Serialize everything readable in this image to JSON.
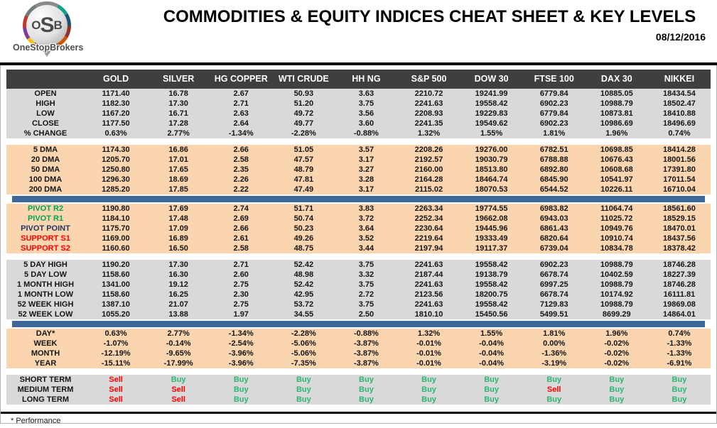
{
  "logo": {
    "letter_o": "O",
    "letter_s": "S",
    "letter_b": "B",
    "subtext": "OneStopBrokers"
  },
  "header": {
    "title": "COMMODITIES & EQUITY INDICES CHEAT SHEET & KEY LEVELS",
    "date": "08/12/2016"
  },
  "footer": {
    "note": "* Performance"
  },
  "colors": {
    "header_bg": "#3F3F3F",
    "gray_row": "#D9D9D9",
    "peach_row": "#FAD5AF",
    "blue_bar": "#3E689A",
    "pivot_green": "#00A551",
    "support_red": "#FF0000",
    "pivot_navy": "#1F3864",
    "buy_green": "#2BB673",
    "sell_red": "#FF0000"
  },
  "chart_data": {
    "type": "table",
    "title": "COMMODITIES & EQUITY INDICES CHEAT SHEET & KEY LEVELS",
    "date": "08/12/2016",
    "columns": [
      "GOLD",
      "SILVER",
      "HG COPPER",
      "WTI CRUDE",
      "HH NG",
      "S&P 500",
      "DOW 30",
      "FTSE 100",
      "DAX 30",
      "NIKKEI"
    ]
  },
  "table": {
    "columns": [
      "GOLD",
      "SILVER",
      "HG COPPER",
      "WTI CRUDE",
      "HH NG",
      "S&P 500",
      "DOW 30",
      "FTSE 100",
      "DAX 30",
      "NIKKEI"
    ],
    "sections": [
      {
        "bg": "gray",
        "rows": [
          {
            "label": "OPEN",
            "values": [
              "1171.40",
              "16.78",
              "2.67",
              "50.93",
              "3.63",
              "2210.72",
              "19241.99",
              "6779.84",
              "10885.05",
              "18434.54"
            ]
          },
          {
            "label": "HIGH",
            "values": [
              "1182.30",
              "17.30",
              "2.71",
              "51.20",
              "3.75",
              "2241.63",
              "19558.42",
              "6902.23",
              "10988.79",
              "18502.47"
            ]
          },
          {
            "label": "LOW",
            "values": [
              "1167.20",
              "16.71",
              "2.63",
              "49.72",
              "3.56",
              "2208.93",
              "19229.83",
              "6779.84",
              "10873.81",
              "18410.88"
            ]
          },
          {
            "label": "CLOSE",
            "values": [
              "1177.50",
              "17.28",
              "2.64",
              "49.77",
              "3.60",
              "2241.35",
              "19549.62",
              "6902.23",
              "10986.69",
              "18496.69"
            ]
          },
          {
            "label": "% CHANGE",
            "values": [
              "0.63%",
              "2.77%",
              "-1.34%",
              "-2.28%",
              "-0.88%",
              "1.32%",
              "1.55%",
              "1.81%",
              "1.96%",
              "0.74%"
            ]
          }
        ]
      },
      {
        "divider": "gap"
      },
      {
        "bg": "peach",
        "rows": [
          {
            "label": "5 DMA",
            "values": [
              "1174.30",
              "16.86",
              "2.66",
              "51.05",
              "3.57",
              "2208.26",
              "19276.00",
              "6782.51",
              "10698.85",
              "18414.28"
            ]
          },
          {
            "label": "20 DMA",
            "values": [
              "1205.70",
              "17.01",
              "2.58",
              "47.57",
              "3.17",
              "2192.57",
              "19030.79",
              "6788.88",
              "10676.43",
              "18001.56"
            ]
          },
          {
            "label": "50 DMA",
            "values": [
              "1250.80",
              "17.65",
              "2.35",
              "48.79",
              "3.27",
              "2160.00",
              "18513.80",
              "6892.80",
              "10608.68",
              "17391.80"
            ]
          },
          {
            "label": "100 DMA",
            "values": [
              "1296.30",
              "18.69",
              "2.26",
              "47.81",
              "3.28",
              "2164.28",
              "18464.74",
              "6845.90",
              "10541.97",
              "17011.54"
            ]
          },
          {
            "label": "200 DMA",
            "values": [
              "1285.20",
              "17.85",
              "2.22",
              "47.49",
              "3.17",
              "2115.02",
              "18070.53",
              "6544.52",
              "10226.11",
              "16710.04"
            ]
          }
        ]
      },
      {
        "divider": "blue"
      },
      {
        "bg": "peach",
        "rows": [
          {
            "label": "PIVOT R2",
            "label_color": "green",
            "values": [
              "1190.80",
              "17.69",
              "2.74",
              "51.71",
              "3.83",
              "2263.34",
              "19774.55",
              "6983.82",
              "11064.74",
              "18561.60"
            ]
          },
          {
            "label": "PIVOT R1",
            "label_color": "green",
            "values": [
              "1184.10",
              "17.48",
              "2.69",
              "50.74",
              "3.72",
              "2252.34",
              "19662.08",
              "6943.03",
              "11025.72",
              "18529.15"
            ]
          },
          {
            "label": "PIVOT POINT",
            "label_color": "navy",
            "values": [
              "1175.70",
              "17.09",
              "2.66",
              "50.23",
              "3.64",
              "2230.64",
              "19445.96",
              "6861.43",
              "10949.76",
              "18470.01"
            ]
          },
          {
            "label": "SUPPORT S1",
            "label_color": "red",
            "values": [
              "1169.00",
              "16.89",
              "2.61",
              "49.26",
              "3.52",
              "2219.64",
              "19333.49",
              "6820.64",
              "10910.74",
              "18437.56"
            ]
          },
          {
            "label": "SUPPORT S2",
            "label_color": "red",
            "values": [
              "1160.60",
              "16.50",
              "2.58",
              "48.75",
              "3.44",
              "2197.94",
              "19117.37",
              "6739.04",
              "10834.78",
              "18378.42"
            ]
          }
        ]
      },
      {
        "divider": "gap"
      },
      {
        "bg": "gray",
        "rows": [
          {
            "label": "5 DAY HIGH",
            "values": [
              "1190.20",
              "17.30",
              "2.71",
              "52.42",
              "3.75",
              "2241.63",
              "19558.42",
              "6902.23",
              "10988.79",
              "18746.28"
            ]
          },
          {
            "label": "5 DAY LOW",
            "values": [
              "1158.60",
              "16.30",
              "2.60",
              "48.98",
              "3.32",
              "2187.44",
              "19138.79",
              "6678.74",
              "10402.59",
              "18227.39"
            ]
          },
          {
            "label": "1 MONTH HIGH",
            "values": [
              "1341.00",
              "19.12",
              "2.75",
              "52.42",
              "3.75",
              "2241.63",
              "19558.42",
              "6997.25",
              "10988.79",
              "18746.28"
            ]
          },
          {
            "label": "1 MONTH LOW",
            "values": [
              "1158.60",
              "16.25",
              "2.30",
              "42.95",
              "2.72",
              "2123.56",
              "18200.75",
              "6678.74",
              "10174.92",
              "16111.81"
            ]
          },
          {
            "label": "52 WEEK HIGH",
            "values": [
              "1387.10",
              "21.07",
              "2.75",
              "53.72",
              "3.75",
              "2241.63",
              "19558.42",
              "7129.83",
              "10988.79",
              "19869.08"
            ]
          },
          {
            "label": "52 WEEK LOW",
            "values": [
              "1055.20",
              "13.88",
              "1.97",
              "34.55",
              "2.50",
              "1810.10",
              "15450.56",
              "5499.51",
              "8699.29",
              "14864.01"
            ]
          }
        ]
      },
      {
        "divider": "blue"
      },
      {
        "bg": "peach",
        "rows": [
          {
            "label": "DAY*",
            "values": [
              "0.63%",
              "2.77%",
              "-1.34%",
              "-2.28%",
              "-0.88%",
              "1.32%",
              "1.55%",
              "1.81%",
              "1.96%",
              "0.74%"
            ]
          },
          {
            "label": "WEEK",
            "values": [
              "-1.07%",
              "-0.14%",
              "-2.54%",
              "-5.06%",
              "-3.87%",
              "-0.01%",
              "-0.04%",
              "0.00%",
              "-0.02%",
              "-1.33%"
            ]
          },
          {
            "label": "MONTH",
            "values": [
              "-12.19%",
              "-9.65%",
              "-3.96%",
              "-5.06%",
              "-3.87%",
              "-0.01%",
              "-0.04%",
              "-1.36%",
              "-0.02%",
              "-1.33%"
            ]
          },
          {
            "label": "YEAR",
            "values": [
              "-15.11%",
              "-17.99%",
              "-3.96%",
              "-7.35%",
              "-3.87%",
              "-0.01%",
              "-0.04%",
              "-3.19%",
              "-0.02%",
              "-6.91%"
            ]
          }
        ]
      },
      {
        "divider": "gap"
      },
      {
        "bg": "gray",
        "rows": [
          {
            "label": "SHORT TERM",
            "values": [
              "Sell",
              "Buy",
              "Buy",
              "Buy",
              "Buy",
              "Buy",
              "Buy",
              "Buy",
              "Buy",
              "Buy"
            ]
          },
          {
            "label": "MEDIUM TERM",
            "values": [
              "Sell",
              "Sell",
              "Buy",
              "Buy",
              "Buy",
              "Buy",
              "Buy",
              "Sell",
              "Buy",
              "Buy"
            ]
          },
          {
            "label": "LONG TERM",
            "values": [
              "Sell",
              "Sell",
              "Buy",
              "Buy",
              "Buy",
              "Buy",
              "Buy",
              "Buy",
              "Buy",
              "Buy"
            ]
          }
        ]
      }
    ]
  }
}
